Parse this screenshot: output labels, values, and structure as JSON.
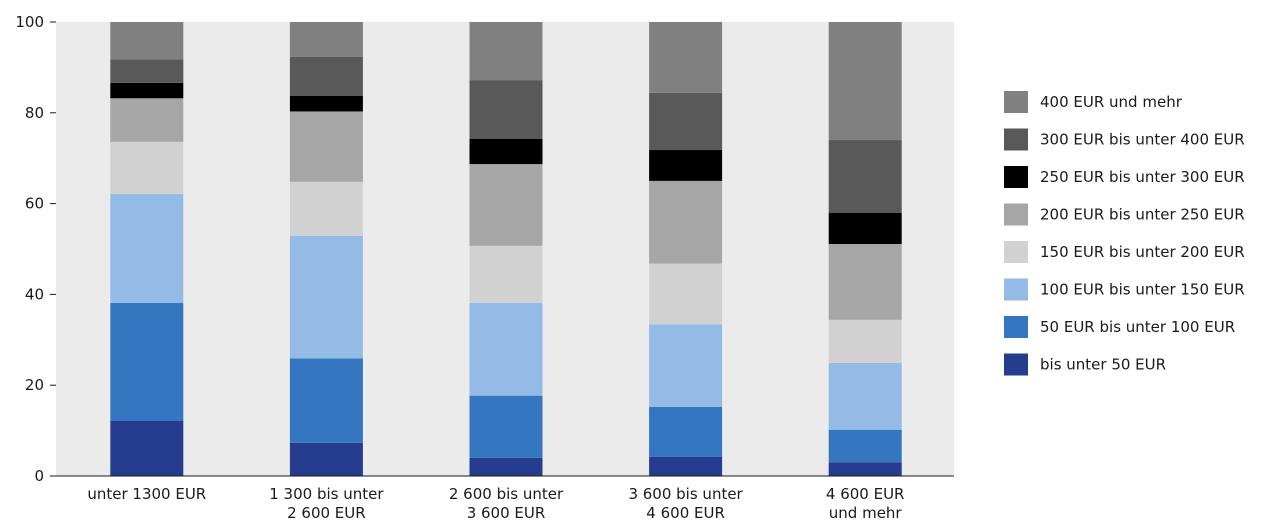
{
  "chart_data": {
    "type": "bar",
    "stacked": true,
    "ylim": [
      0,
      100
    ],
    "yticks": [
      0,
      20,
      40,
      60,
      80,
      100
    ],
    "grid": false,
    "legend_position": "right",
    "plot_background": "#ebebeb",
    "categories": [
      [
        "unter 1300 EUR"
      ],
      [
        "1 300 bis unter",
        "2 600 EUR"
      ],
      [
        "2 600 bis unter",
        "3 600 EUR"
      ],
      [
        "3 600 bis unter",
        "4 600 EUR"
      ],
      [
        "4 600 EUR",
        "und mehr"
      ]
    ],
    "series": [
      {
        "name": "bis unter 50 EUR",
        "color": "#263d8f",
        "values": [
          12.2,
          7.3,
          4.0,
          4.2,
          3.0
        ]
      },
      {
        "name": "50 EUR bis unter 100 EUR",
        "color": "#3476bf",
        "values": [
          25.9,
          18.6,
          13.7,
          11.0,
          7.2
        ]
      },
      {
        "name": "100 EUR bis unter 150 EUR",
        "color": "#93bbe5",
        "values": [
          24.0,
          27.0,
          20.4,
          18.2,
          14.7
        ]
      },
      {
        "name": "150 EUR bis unter 200 EUR",
        "color": "#d1d1d1",
        "values": [
          11.5,
          11.9,
          12.6,
          13.4,
          9.5
        ]
      },
      {
        "name": "200 EUR bis unter 250 EUR",
        "color": "#a6a6a6",
        "values": [
          9.6,
          15.5,
          18.0,
          18.2,
          16.7
        ]
      },
      {
        "name": "250 EUR bis unter 300 EUR",
        "color": "#000000",
        "values": [
          3.4,
          3.4,
          5.6,
          6.8,
          6.9
        ]
      },
      {
        "name": "300 EUR bis unter 400 EUR",
        "color": "#595959",
        "values": [
          5.2,
          8.6,
          12.9,
          12.6,
          16.0
        ]
      },
      {
        "name": "400 EUR und mehr",
        "color": "#808080",
        "values": [
          8.2,
          7.7,
          12.8,
          15.6,
          26.0
        ]
      }
    ]
  }
}
